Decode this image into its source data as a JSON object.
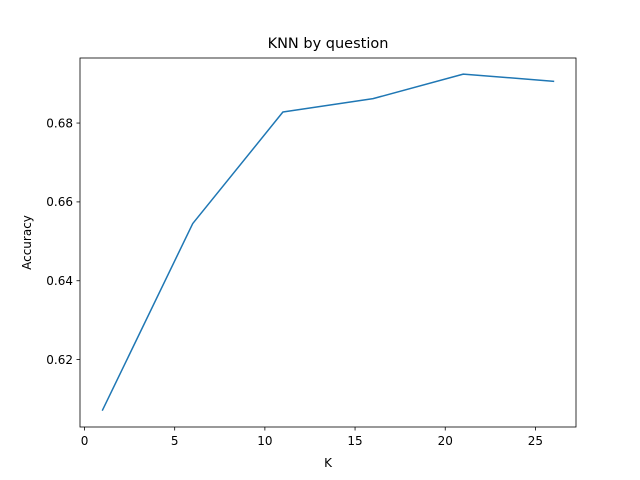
{
  "chart_data": {
    "type": "line",
    "title": "KNN by question",
    "xlabel": "K",
    "ylabel": "Accuracy",
    "xlim": [
      -0.25,
      27.25
    ],
    "ylim": [
      0.6029,
      0.6965
    ],
    "xticks": [
      0,
      5,
      10,
      15,
      20,
      25
    ],
    "yticks": [
      0.62,
      0.64,
      0.66,
      0.68
    ],
    "grid": false,
    "legend": "none",
    "series": [
      {
        "color": "#1f77b4",
        "x": [
          1,
          6,
          11,
          16,
          21,
          26
        ],
        "y": [
          0.6072,
          0.6545,
          0.6828,
          0.6862,
          0.6924,
          0.6906
        ]
      }
    ]
  }
}
